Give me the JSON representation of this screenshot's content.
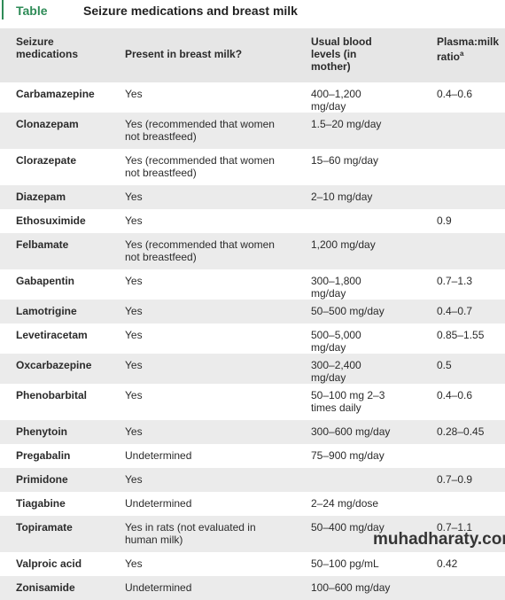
{
  "header": {
    "label": "Table",
    "title": "Seizure medications and breast milk"
  },
  "table": {
    "columns": [
      "Seizure medications",
      "Present in breast milk?",
      "Usual blood levels (in mother)",
      "Plasma:milk ratio"
    ],
    "column_note": "a",
    "rows": [
      {
        "name": "Carbamazepine",
        "present": "Yes",
        "levels": "400–1,200 mg/day",
        "ratio": "0.4–0.6"
      },
      {
        "name": "Clonazepam",
        "present": "Yes (recommended that women not breastfeed)",
        "levels": "1.5–20 mg/day"
      },
      {
        "name": "Clorazepate",
        "present": "Yes (recommended that women not breastfeed)",
        "levels": "15–60 mg/day"
      },
      {
        "name": "Diazepam",
        "present": "Yes",
        "levels": "2–10 mg/day"
      },
      {
        "name": "Ethosuximide",
        "present": "Yes",
        "ratio": "0.9"
      },
      {
        "name": "Felbamate",
        "present": "Yes (recommended that women not breastfeed)",
        "levels": "1,200 mg/day"
      },
      {
        "name": "Gabapentin",
        "present": "Yes",
        "levels": "300–1,800 mg/day",
        "ratio": "0.7–1.3"
      },
      {
        "name": "Lamotrigine",
        "present": "Yes",
        "levels": "50–500 mg/day",
        "ratio": "0.4–0.7"
      },
      {
        "name": "Levetiracetam",
        "present": "Yes",
        "levels": "500–5,000 mg/day",
        "ratio": "0.85–1.55"
      },
      {
        "name": "Oxcarbazepine",
        "present": "Yes",
        "levels": "300–2,400 mg/day",
        "ratio": "0.5"
      },
      {
        "name": "Phenobarbital",
        "present": "Yes",
        "levels": "50–100 mg 2–3 times daily",
        "ratio": "0.4–0.6"
      },
      {
        "name": "Phenytoin",
        "present": "Yes",
        "levels": "300–600 mg/day",
        "ratio": "0.28–0.45"
      },
      {
        "name": "Pregabalin",
        "present": "Undetermined",
        "levels": "75–900 mg/day"
      },
      {
        "name": "Primidone",
        "present": "Yes",
        "ratio": "0.7–0.9"
      },
      {
        "name": "Tiagabine",
        "present": "Undetermined",
        "levels": "2–24 mg/dose"
      },
      {
        "name": "Topiramate",
        "present": "Yes in rats (not evaluated in human milk)",
        "levels": "50–400 mg/day",
        "ratio": "0.7–1.1"
      },
      {
        "name": "Valproic acid",
        "present": "Yes",
        "levels": "50–100 pg/mL",
        "ratio": "0.42"
      },
      {
        "name": "Zonisamide",
        "present": "Undetermined",
        "levels": "100–600 mg/day"
      }
    ]
  },
  "watermark": "muhadharaty.com"
}
